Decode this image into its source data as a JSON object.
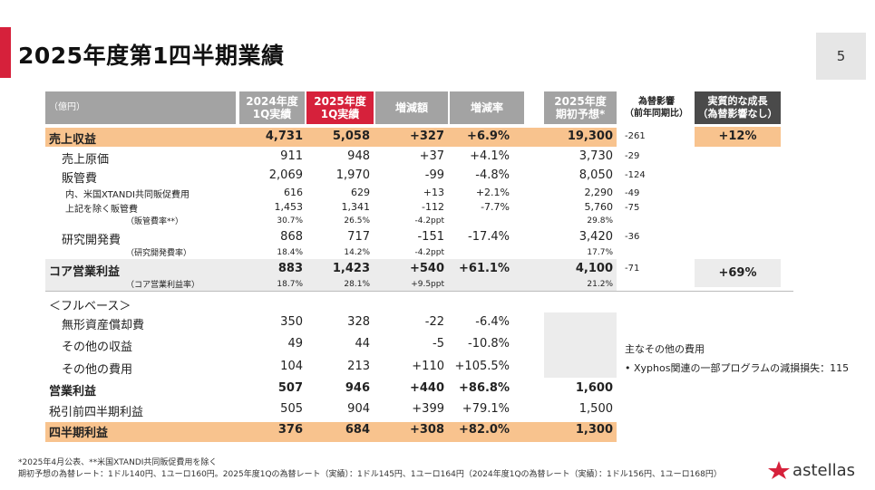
{
  "title": "2025年度第1四半期業績",
  "page_number": "5",
  "header": {
    "unit": "（億円）",
    "col_2024": "2024年度\n1Q実績",
    "col_2025": "2025年度\n1Q実績",
    "col_diff": "増減額",
    "col_rate": "増減率",
    "col_forecast": "2025年度\n期初予想*",
    "col_fx": "為替影響\n（前年同期比）",
    "col_real": "実質的な成長\n（為替影響なし）"
  },
  "rows": [
    {
      "label": "売上収益",
      "v2024": "4,731",
      "v2025": "5,058",
      "diff": "+327",
      "rate": "+6.9%",
      "forecast": "19,300",
      "fx": "-261",
      "real": "+12%"
    },
    {
      "label": "売上原価",
      "v2024": "911",
      "v2025": "948",
      "diff": "+37",
      "rate": "+4.1%",
      "forecast": "3,730",
      "fx": "-29"
    },
    {
      "label": "販管費",
      "v2024": "2,069",
      "v2025": "1,970",
      "diff": "-99",
      "rate": "-4.8%",
      "forecast": "8,050",
      "fx": "-124"
    },
    {
      "label": "内、米国XTANDI共同販促費用",
      "v2024": "616",
      "v2025": "629",
      "diff": "+13",
      "rate": "+2.1%",
      "forecast": "2,290",
      "fx": "-49"
    },
    {
      "label": "上記を除く販管費",
      "v2024": "1,453",
      "v2025": "1,341",
      "diff": "-112",
      "rate": "-7.7%",
      "forecast": "5,760",
      "fx": "-75"
    },
    {
      "label": "（販管費率**）",
      "v2024": "30.7%",
      "v2025": "26.5%",
      "diff": "-4.2ppt",
      "forecast": "29.8%"
    },
    {
      "label": "研究開発費",
      "v2024": "868",
      "v2025": "717",
      "diff": "-151",
      "rate": "-17.4%",
      "forecast": "3,420",
      "fx": "-36"
    },
    {
      "label": "（研究開発費率）",
      "v2024": "18.4%",
      "v2025": "14.2%",
      "diff": "-4.2ppt",
      "forecast": "17.7%"
    },
    {
      "label": "コア営業利益",
      "v2024": "883",
      "v2025": "1,423",
      "diff": "+540",
      "rate": "+61.1%",
      "forecast": "4,100",
      "fx": "-71",
      "real": "+69%"
    },
    {
      "label": "（コア営業利益率）",
      "v2024": "18.7%",
      "v2025": "28.1%",
      "diff": "+9.5ppt",
      "forecast": "21.2%"
    },
    {
      "label": "＜フルベース＞"
    },
    {
      "label": "無形資産償却費",
      "v2024": "350",
      "v2025": "328",
      "diff": "-22",
      "rate": "-6.4%"
    },
    {
      "label": "その他の収益",
      "v2024": "49",
      "v2025": "44",
      "diff": "-5",
      "rate": "-10.8%"
    },
    {
      "label": "その他の費用",
      "v2024": "104",
      "v2025": "213",
      "diff": "+110",
      "rate": "+105.5%"
    },
    {
      "label": "営業利益",
      "v2024": "507",
      "v2025": "946",
      "diff": "+440",
      "rate": "+86.8%",
      "forecast": "1,600"
    },
    {
      "label": "税引前四半期利益",
      "v2024": "505",
      "v2025": "904",
      "diff": "+399",
      "rate": "+79.1%",
      "forecast": "1,500"
    },
    {
      "label": "四半期利益",
      "v2024": "376",
      "v2025": "684",
      "diff": "+308",
      "rate": "+82.0%",
      "forecast": "1,300"
    }
  ],
  "note": {
    "title": "主なその他の費用",
    "bullet": "Xyphos関連の一部プログラムの減損損失：115"
  },
  "footer": {
    "line1": "*2025年4月公表、**米国XTANDI共同販促費用を除く",
    "line2": "期初予想の為替レート：1ドル140円、1ユーロ160円。2025年度1Qの為替レート（実績）：1ドル145円、1ユーロ164円（2024年度1Qの為替レート（実績）：1ドル156円、1ユーロ168円）"
  },
  "logo_text": "astellas",
  "colors": {
    "accent_red": "#d6213b",
    "band_orange": "#f8c38e",
    "header_gray": "#a3a3a3",
    "header_dark": "#4a4a4a"
  }
}
